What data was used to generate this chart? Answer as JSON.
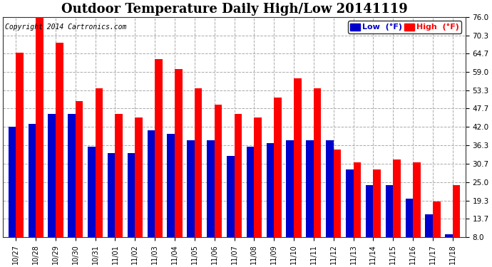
{
  "title": "Outdoor Temperature Daily High/Low 20141119",
  "copyright": "Copyright 2014 Cartronics.com",
  "dates": [
    "10/27",
    "10/28",
    "10/29",
    "10/30",
    "10/31",
    "11/01",
    "11/02",
    "11/03",
    "11/04",
    "11/05",
    "11/06",
    "11/07",
    "11/08",
    "11/09",
    "11/10",
    "11/11",
    "11/12",
    "11/13",
    "11/14",
    "11/15",
    "11/16",
    "11/17",
    "11/18"
  ],
  "highs": [
    65.0,
    76.0,
    68.0,
    50.0,
    54.0,
    46.0,
    45.0,
    63.0,
    60.0,
    54.0,
    49.0,
    46.0,
    45.0,
    51.0,
    57.0,
    54.0,
    35.0,
    31.0,
    29.0,
    32.0,
    31.0,
    19.0,
    24.0
  ],
  "lows": [
    42.0,
    43.0,
    46.0,
    46.0,
    36.0,
    34.0,
    34.0,
    41.0,
    40.0,
    38.0,
    38.0,
    33.0,
    36.0,
    37.0,
    38.0,
    38.0,
    38.0,
    29.0,
    24.0,
    24.0,
    20.0,
    15.0,
    9.0
  ],
  "high_color": "#FF0000",
  "low_color": "#0000CC",
  "bg_color": "#ffffff",
  "plot_bg_color": "#ffffff",
  "grid_color": "#aaaaaa",
  "yticks": [
    8.0,
    13.7,
    19.3,
    25.0,
    30.7,
    36.3,
    42.0,
    47.7,
    53.3,
    59.0,
    64.7,
    70.3,
    76.0
  ],
  "ymin": 8.0,
  "ymax": 76.0,
  "title_fontsize": 13,
  "copyright_fontsize": 7,
  "legend_low_label": "Low  (°F)",
  "legend_high_label": "High  (°F)"
}
